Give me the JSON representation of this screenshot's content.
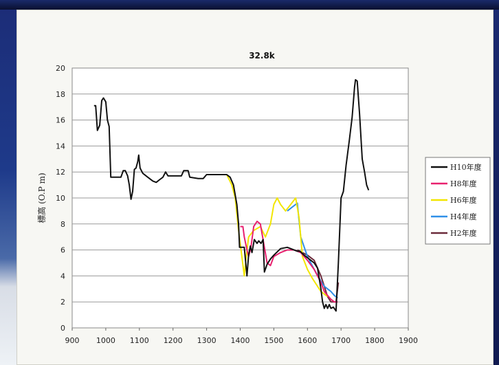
{
  "chart_data": {
    "type": "line",
    "title": "32.8k",
    "xlabel": "",
    "ylabel": "標高 (O.P m)",
    "xlim": [
      900,
      1900
    ],
    "ylim": [
      0,
      20
    ],
    "xticks": [
      900,
      1000,
      1100,
      1200,
      1300,
      1400,
      1500,
      1600,
      1700,
      1800,
      1900
    ],
    "yticks": [
      0,
      2,
      4,
      6,
      8,
      10,
      12,
      14,
      16,
      18,
      20
    ],
    "grid": "horizontal",
    "legend_position": "right",
    "series": [
      {
        "name": "H2年度",
        "color": "#6b2a3a",
        "points": [
          [
            1570,
            6.0
          ],
          [
            1600,
            5.6
          ],
          [
            1620,
            5.2
          ],
          [
            1640,
            4.0
          ],
          [
            1650,
            3.2
          ],
          [
            1660,
            2.4
          ],
          [
            1670,
            2.0
          ],
          [
            1685,
            2.0
          ],
          [
            1692,
            3.5
          ]
        ]
      },
      {
        "name": "H4年度",
        "color": "#2f8fe8",
        "points": [
          [
            1540,
            9.0
          ],
          [
            1555,
            9.3
          ],
          [
            1570,
            9.6
          ],
          [
            1580,
            7.0
          ],
          [
            1600,
            5.5
          ],
          [
            1620,
            4.5
          ],
          [
            1640,
            3.6
          ],
          [
            1650,
            3.2
          ],
          [
            1660,
            3.0
          ],
          [
            1670,
            2.8
          ],
          [
            1680,
            2.5
          ],
          [
            1690,
            2.3
          ]
        ]
      },
      {
        "name": "H6年度",
        "color": "#f2e600",
        "points": [
          [
            1360,
            11.8
          ],
          [
            1375,
            11.0
          ],
          [
            1385,
            10.0
          ],
          [
            1395,
            7.5
          ],
          [
            1405,
            5.5
          ],
          [
            1412,
            4.0
          ],
          [
            1418,
            5.5
          ],
          [
            1425,
            7.0
          ],
          [
            1440,
            7.5
          ],
          [
            1460,
            7.8
          ],
          [
            1475,
            7.0
          ],
          [
            1490,
            8.0
          ],
          [
            1500,
            9.5
          ],
          [
            1510,
            10.0
          ],
          [
            1520,
            9.5
          ],
          [
            1535,
            9.0
          ],
          [
            1550,
            9.5
          ],
          [
            1565,
            10.0
          ],
          [
            1575,
            8.5
          ],
          [
            1585,
            5.5
          ],
          [
            1600,
            4.5
          ],
          [
            1615,
            3.8
          ],
          [
            1630,
            3.2
          ],
          [
            1640,
            2.8
          ],
          [
            1650,
            2.6
          ],
          [
            1660,
            2.4
          ]
        ]
      },
      {
        "name": "H8年度",
        "color": "#e8206e",
        "points": [
          [
            1400,
            7.8
          ],
          [
            1408,
            7.8
          ],
          [
            1412,
            7.0
          ],
          [
            1420,
            6.0
          ],
          [
            1425,
            5.5
          ],
          [
            1432,
            6.2
          ],
          [
            1440,
            7.8
          ],
          [
            1450,
            8.2
          ],
          [
            1460,
            8.0
          ],
          [
            1470,
            6.5
          ],
          [
            1480,
            5.0
          ],
          [
            1490,
            4.8
          ],
          [
            1500,
            5.5
          ],
          [
            1520,
            5.8
          ],
          [
            1540,
            6.0
          ],
          [
            1560,
            6.0
          ],
          [
            1580,
            5.8
          ],
          [
            1600,
            5.2
          ],
          [
            1620,
            4.5
          ],
          [
            1640,
            3.5
          ],
          [
            1650,
            2.8
          ],
          [
            1660,
            2.5
          ],
          [
            1670,
            2.2
          ],
          [
            1680,
            2.0
          ],
          [
            1690,
            2.0
          ]
        ]
      },
      {
        "name": "H10年度",
        "color": "#111111",
        "points": [
          [
            965,
            17.1
          ],
          [
            970,
            17.1
          ],
          [
            975,
            15.2
          ],
          [
            982,
            15.6
          ],
          [
            988,
            17.5
          ],
          [
            993,
            17.7
          ],
          [
            1000,
            17.4
          ],
          [
            1005,
            16.0
          ],
          [
            1010,
            15.5
          ],
          [
            1015,
            11.6
          ],
          [
            1025,
            11.6
          ],
          [
            1045,
            11.6
          ],
          [
            1052,
            12.1
          ],
          [
            1058,
            12.1
          ],
          [
            1065,
            11.7
          ],
          [
            1070,
            11.0
          ],
          [
            1075,
            9.9
          ],
          [
            1080,
            10.5
          ],
          [
            1085,
            12.2
          ],
          [
            1090,
            12.3
          ],
          [
            1095,
            12.8
          ],
          [
            1098,
            13.3
          ],
          [
            1102,
            12.3
          ],
          [
            1110,
            11.9
          ],
          [
            1125,
            11.6
          ],
          [
            1140,
            11.3
          ],
          [
            1150,
            11.2
          ],
          [
            1160,
            11.4
          ],
          [
            1170,
            11.6
          ],
          [
            1178,
            12.0
          ],
          [
            1185,
            11.7
          ],
          [
            1200,
            11.7
          ],
          [
            1225,
            11.7
          ],
          [
            1232,
            12.1
          ],
          [
            1245,
            12.1
          ],
          [
            1250,
            11.6
          ],
          [
            1275,
            11.5
          ],
          [
            1290,
            11.5
          ],
          [
            1300,
            11.8
          ],
          [
            1360,
            11.8
          ],
          [
            1370,
            11.6
          ],
          [
            1380,
            11.0
          ],
          [
            1390,
            9.5
          ],
          [
            1395,
            8.0
          ],
          [
            1398,
            6.2
          ],
          [
            1412,
            6.2
          ],
          [
            1420,
            4.0
          ],
          [
            1425,
            5.6
          ],
          [
            1430,
            6.3
          ],
          [
            1435,
            5.8
          ],
          [
            1442,
            6.8
          ],
          [
            1450,
            6.5
          ],
          [
            1455,
            6.7
          ],
          [
            1462,
            6.5
          ],
          [
            1468,
            6.8
          ],
          [
            1472,
            4.3
          ],
          [
            1480,
            4.9
          ],
          [
            1490,
            5.3
          ],
          [
            1500,
            5.6
          ],
          [
            1520,
            6.1
          ],
          [
            1540,
            6.2
          ],
          [
            1560,
            6.0
          ],
          [
            1570,
            5.9
          ],
          [
            1578,
            5.9
          ],
          [
            1590,
            5.6
          ],
          [
            1600,
            5.4
          ],
          [
            1610,
            5.2
          ],
          [
            1620,
            5.0
          ],
          [
            1630,
            4.6
          ],
          [
            1640,
            3.0
          ],
          [
            1645,
            2.0
          ],
          [
            1650,
            1.5
          ],
          [
            1655,
            1.8
          ],
          [
            1660,
            1.5
          ],
          [
            1665,
            1.8
          ],
          [
            1670,
            1.5
          ],
          [
            1677,
            1.6
          ],
          [
            1685,
            1.3
          ],
          [
            1692,
            5.0
          ],
          [
            1700,
            10.0
          ],
          [
            1707,
            10.5
          ],
          [
            1715,
            12.5
          ],
          [
            1725,
            14.5
          ],
          [
            1733,
            16.2
          ],
          [
            1740,
            18.5
          ],
          [
            1743,
            19.1
          ],
          [
            1748,
            19.0
          ],
          [
            1755,
            16.5
          ],
          [
            1763,
            13.0
          ],
          [
            1770,
            12.0
          ],
          [
            1776,
            11.0
          ],
          [
            1782,
            10.6
          ]
        ]
      }
    ]
  }
}
